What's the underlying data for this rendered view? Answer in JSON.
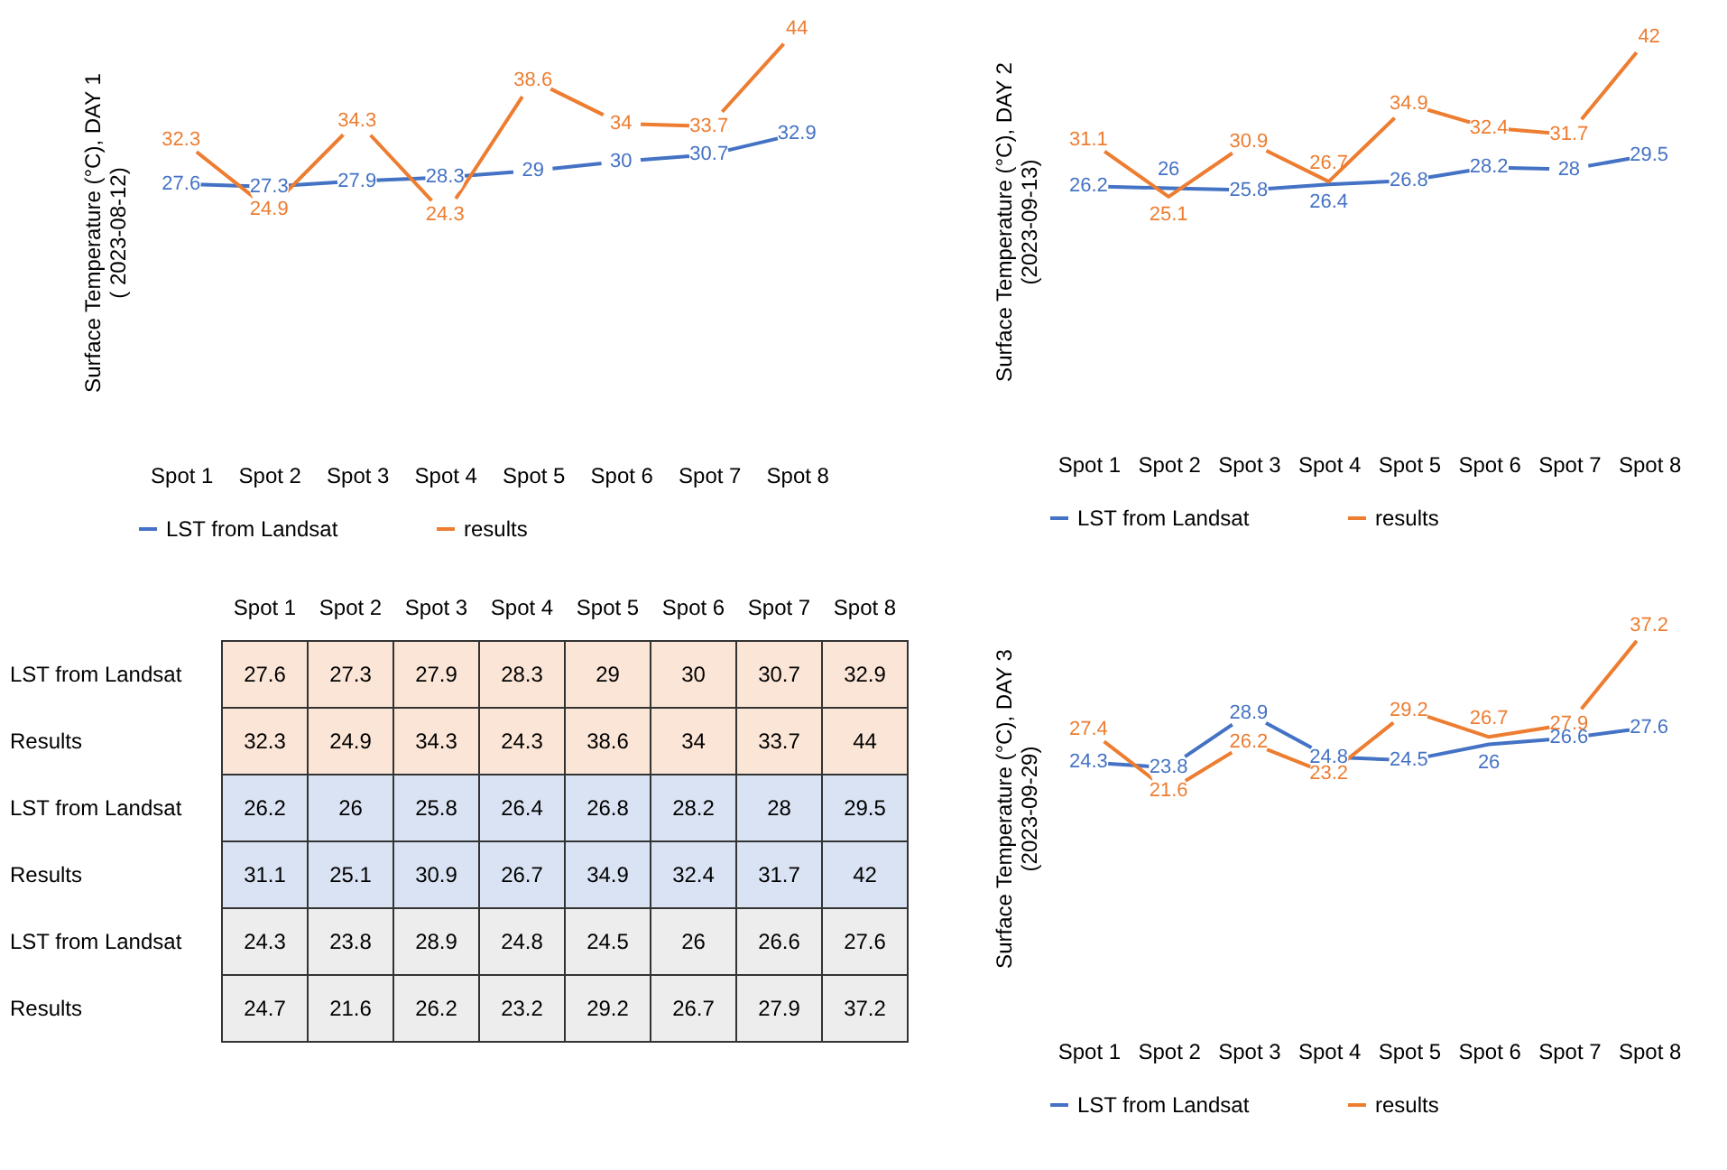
{
  "chart_data": [
    {
      "type": "line",
      "ylabel": "Surface Temperature (°C), DAY 1\n( 2023-08-12)",
      "categories": [
        "Spot 1",
        "Spot 2",
        "Spot 3",
        "Spot 4",
        "Spot 5",
        "Spot 6",
        "Spot 7",
        "Spot 8"
      ],
      "series": [
        {
          "name": "LST from Landsat",
          "color": "#4472c4",
          "values": [
            27.6,
            27.3,
            27.9,
            28.3,
            29,
            30,
            30.7,
            32.9
          ]
        },
        {
          "name": "results",
          "color": "#ed7d31",
          "values": [
            32.3,
            24.9,
            34.3,
            24.3,
            38.6,
            34,
            33.7,
            44
          ]
        }
      ],
      "data_labels": true,
      "marker": "circle",
      "legend": "bottom",
      "tick_labels": "x",
      "grid": false
    },
    {
      "type": "line",
      "ylabel": "Surface Temperature (°C), DAY 2\n(2023-09-13)",
      "categories": [
        "Spot 1",
        "Spot 2",
        "Spot 3",
        "Spot 4",
        "Spot 5",
        "Spot 6",
        "Spot 7",
        "Spot 8"
      ],
      "series": [
        {
          "name": "LST from Landsat",
          "color": "#4472c4",
          "values": [
            26.2,
            26,
            25.8,
            26.4,
            26.8,
            28.2,
            28,
            29.5
          ]
        },
        {
          "name": "results",
          "color": "#ed7d31",
          "values": [
            31.1,
            25.1,
            30.9,
            26.7,
            34.9,
            32.4,
            31.7,
            42
          ]
        }
      ],
      "data_labels": true,
      "marker": "circle",
      "legend": "bottom",
      "tick_labels": "x",
      "grid": false
    },
    {
      "type": "heatmap",
      "categories": [
        "Spot 1",
        "Spot 2",
        "Spot 3",
        "Spot 4",
        "Spot 5",
        "Spot 6",
        "Spot 7",
        "Spot 8"
      ],
      "y_categories": [
        "LST from Landsat",
        "Results",
        "LST from Landsat",
        "Results",
        "LST from Landsat",
        "Results"
      ],
      "colors": [
        "#fbe5d6",
        "#fbe5d6",
        "#dae3f3",
        "#dae3f3",
        "#ededed",
        "#ededed"
      ],
      "cells": [
        [
          27.6,
          27.3,
          27.9,
          28.3,
          29,
          30,
          30.7,
          32.9
        ],
        [
          32.3,
          24.9,
          34.3,
          24.3,
          38.6,
          34,
          33.7,
          44
        ],
        [
          26.2,
          26,
          25.8,
          26.4,
          26.8,
          28.2,
          28,
          29.5
        ],
        [
          31.1,
          25.1,
          30.9,
          26.7,
          34.9,
          32.4,
          31.7,
          42
        ],
        [
          24.3,
          23.8,
          28.9,
          24.8,
          24.5,
          26,
          26.6,
          27.6
        ],
        [
          24.7,
          21.6,
          26.2,
          23.2,
          29.2,
          26.7,
          27.9,
          37.2
        ]
      ],
      "data_labels": true
    },
    {
      "type": "line",
      "ylabel": "Surface Temperature (°C), DAY 3\n(2023-09-29)",
      "categories": [
        "Spot 1",
        "Spot 2",
        "Spot 3",
        "Spot 4",
        "Spot 5",
        "Spot 6",
        "Spot 7",
        "Spot 8"
      ],
      "series": [
        {
          "name": "LST from Landsat",
          "color": "#4472c4",
          "values": [
            24.3,
            23.8,
            28.9,
            24.8,
            24.5,
            26,
            26.6,
            27.6
          ]
        },
        {
          "name": "results",
          "color": "#ed7d31",
          "values": [
            27.4,
            21.6,
            26.2,
            23.2,
            29.2,
            26.7,
            27.9,
            37.2
          ]
        }
      ],
      "data_labels": true,
      "marker": "circle",
      "legend": "bottom",
      "tick_labels": "x",
      "grid": false
    }
  ]
}
